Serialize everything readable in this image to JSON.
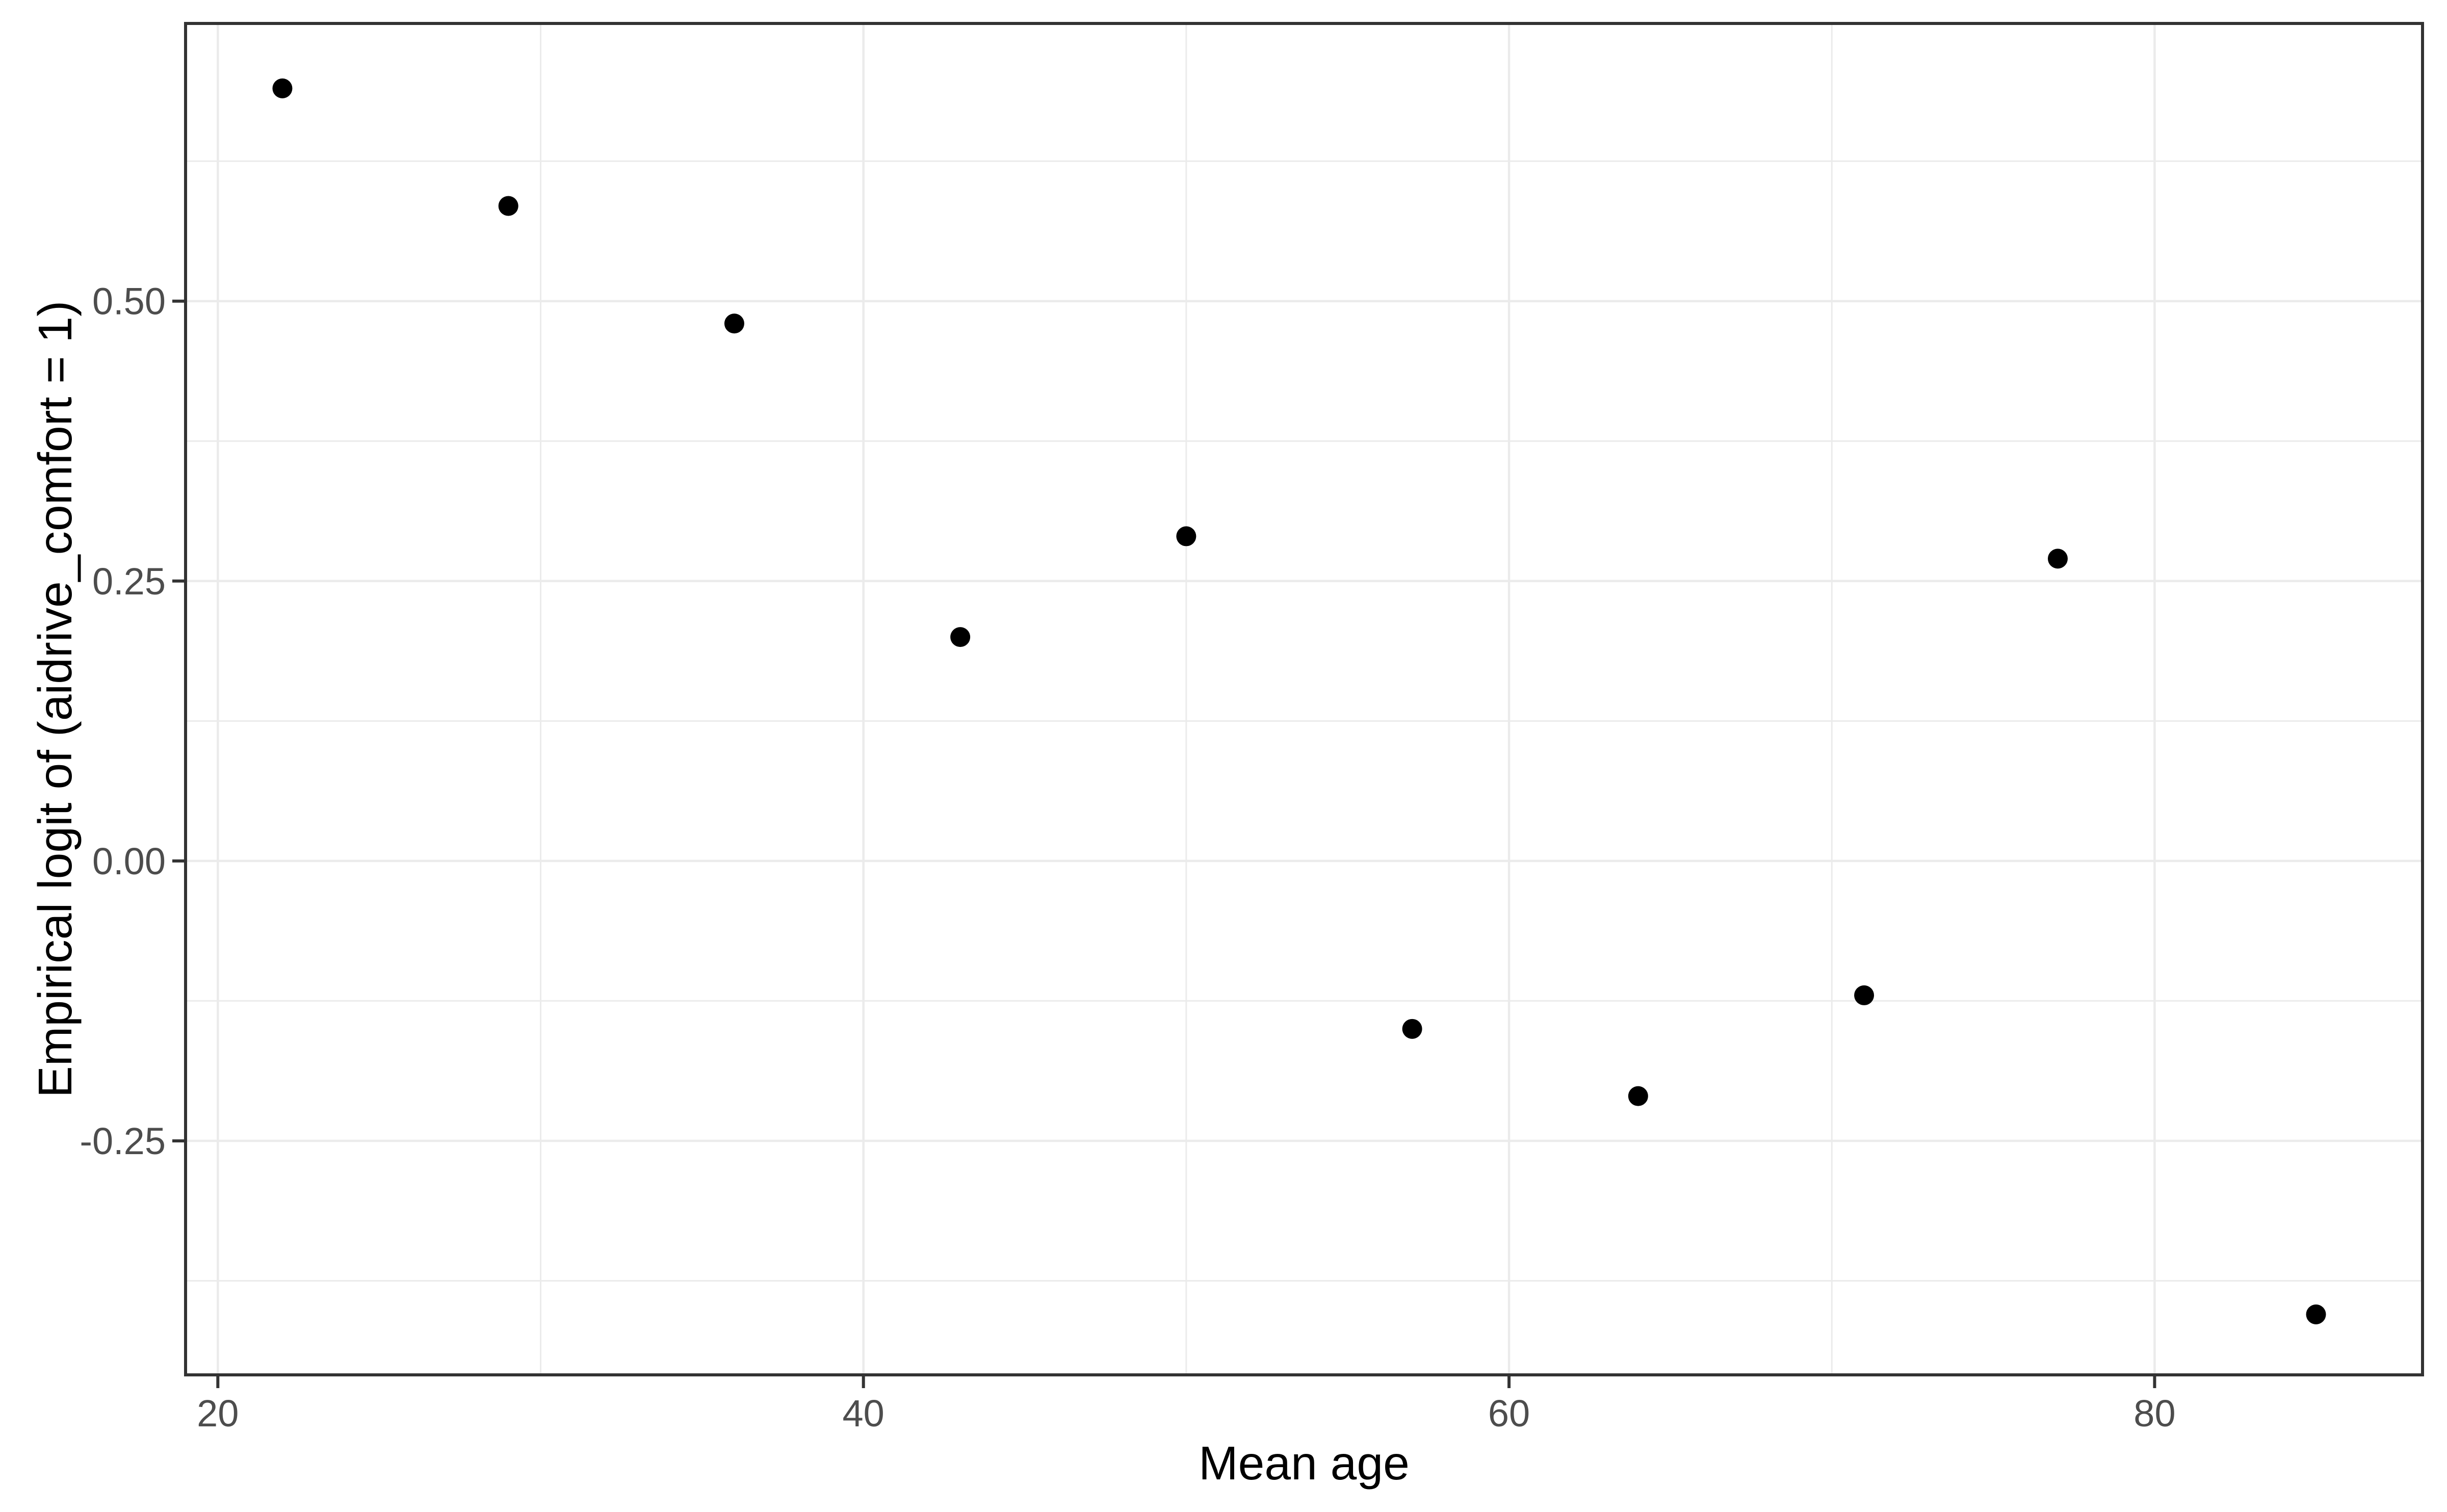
{
  "chart_data": {
    "type": "scatter",
    "title": "",
    "xlabel": "Mean age",
    "ylabel": "Empirical logit of (aidrive_comfort = 1)",
    "points": [
      {
        "x": 22,
        "y": 0.69
      },
      {
        "x": 29,
        "y": 0.585
      },
      {
        "x": 36,
        "y": 0.48
      },
      {
        "x": 43,
        "y": 0.2
      },
      {
        "x": 50,
        "y": 0.29
      },
      {
        "x": 57,
        "y": -0.15
      },
      {
        "x": 64,
        "y": -0.21
      },
      {
        "x": 71,
        "y": -0.12
      },
      {
        "x": 77,
        "y": 0.27
      },
      {
        "x": 85,
        "y": -0.405
      }
    ],
    "xlim": [
      19.0,
      88.3
    ],
    "ylim": [
      -0.459,
      0.748
    ],
    "x_major_ticks": [
      20,
      40,
      60,
      80
    ],
    "x_tick_labels": [
      "20",
      "40",
      "60",
      "80"
    ],
    "x_minor_ticks": [
      30,
      50,
      70
    ],
    "y_major_ticks": [
      0.5,
      0.25,
      0.0,
      -0.25
    ],
    "y_tick_labels": [
      "0.50",
      "0.25",
      "0.00",
      "-0.25"
    ],
    "y_minor_ticks": [
      0.625,
      0.375,
      0.125,
      -0.125,
      -0.375
    ],
    "grid": true,
    "legend": "none",
    "colors": {
      "background": "#ffffff",
      "panel_background": "#ffffff",
      "grid": "#ebebeb",
      "panel_border": "#333333",
      "tick_mark": "#333333",
      "tick_label": "#4d4d4d",
      "axis_title": "#000000",
      "point": "#000000"
    }
  }
}
